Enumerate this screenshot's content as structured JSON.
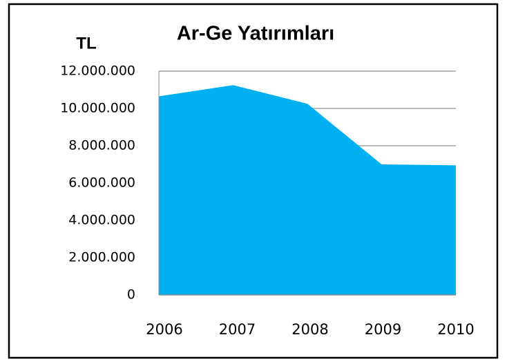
{
  "chart_data": {
    "type": "area",
    "title": "Ar-Ge Yatırımları",
    "y_label": "TL",
    "categories": [
      "2006",
      "2007",
      "2008",
      "2009",
      "2010"
    ],
    "values": [
      10650000,
      11250000,
      10250000,
      7000000,
      6950000
    ],
    "color": "#00b0f0",
    "ylim": [
      0,
      12000000
    ],
    "yticks": [
      0,
      {
        "value": 2000000,
        "label": "2.000.000"
      },
      {
        "value": 4000000,
        "label": "4.000.000"
      },
      {
        "value": 6000000,
        "label": "6.000.000"
      },
      {
        "value": 8000000,
        "label": "8.000.000"
      },
      {
        "value": 10000000,
        "label": "10.000.000"
      },
      {
        "value": 12000000,
        "label": "12.000.000"
      }
    ],
    "grid": true
  }
}
